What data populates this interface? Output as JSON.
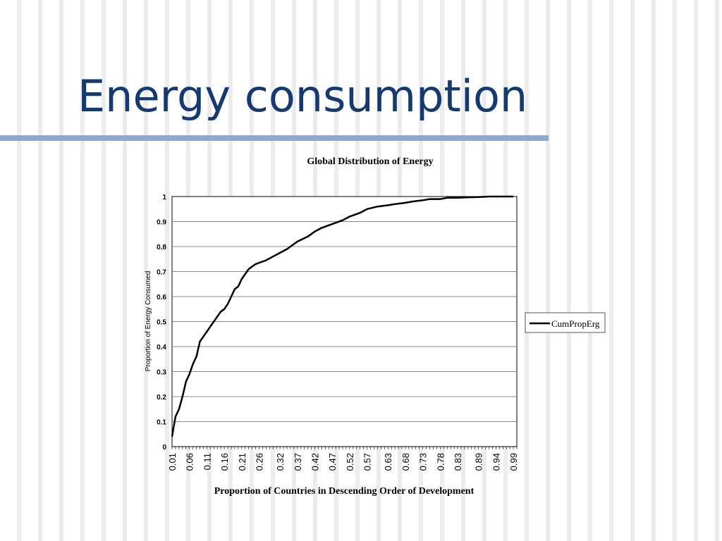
{
  "slide": {
    "title": "Energy consumption",
    "colors": {
      "title": "#133a72",
      "rule": "#8ea9cc",
      "series": "#000000"
    }
  },
  "chart_data": {
    "type": "line",
    "title": "Global Distribution of Energy",
    "xlabel": "Proportion of Countries in Descending Order of Development",
    "ylabel": "Proportion of Energy Consumed",
    "ylim": [
      0,
      1
    ],
    "xlim": [
      0.01,
      1.0
    ],
    "yticks": [
      "0",
      "0.1",
      "0.2",
      "0.3",
      "0.4",
      "0.5",
      "0.6",
      "0.7",
      "0.8",
      "0.9",
      "1"
    ],
    "xticks": [
      "0.01",
      "0.06",
      "0.11",
      "0.16",
      "0.21",
      "0.26",
      "0.32",
      "0.37",
      "0.42",
      "0.47",
      "0.52",
      "0.57",
      "0.63",
      "0.68",
      "0.73",
      "0.78",
      "0.83",
      "0.89",
      "0.94",
      "0.99"
    ],
    "grid": "horizontal",
    "legend_position": "right",
    "series": [
      {
        "name": "CumPropErg",
        "x": [
          0.01,
          0.02,
          0.03,
          0.04,
          0.05,
          0.06,
          0.07,
          0.08,
          0.09,
          0.1,
          0.11,
          0.12,
          0.13,
          0.14,
          0.15,
          0.16,
          0.17,
          0.18,
          0.19,
          0.2,
          0.21,
          0.22,
          0.23,
          0.24,
          0.25,
          0.26,
          0.28,
          0.3,
          0.32,
          0.34,
          0.36,
          0.37,
          0.4,
          0.42,
          0.44,
          0.47,
          0.5,
          0.52,
          0.55,
          0.57,
          0.6,
          0.63,
          0.65,
          0.68,
          0.7,
          0.73,
          0.75,
          0.78,
          0.8,
          0.83,
          0.86,
          0.89,
          0.92,
          0.95,
          0.99
        ],
        "y": [
          0.04,
          0.12,
          0.15,
          0.2,
          0.26,
          0.29,
          0.33,
          0.36,
          0.42,
          0.44,
          0.46,
          0.48,
          0.5,
          0.52,
          0.54,
          0.55,
          0.57,
          0.6,
          0.63,
          0.64,
          0.67,
          0.69,
          0.71,
          0.72,
          0.73,
          0.735,
          0.745,
          0.76,
          0.775,
          0.79,
          0.81,
          0.82,
          0.84,
          0.86,
          0.875,
          0.89,
          0.905,
          0.92,
          0.935,
          0.95,
          0.96,
          0.965,
          0.97,
          0.975,
          0.98,
          0.985,
          0.99,
          0.99,
          0.995,
          0.995,
          0.997,
          0.998,
          1.0,
          1.0,
          1.0
        ]
      }
    ]
  }
}
